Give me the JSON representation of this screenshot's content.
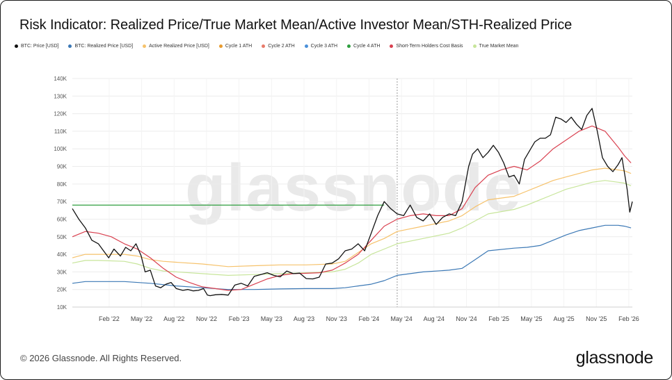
{
  "title": "Risk Indicator: Realized Price/True Market Mean/Active Investor Mean/STH-Realized Price",
  "legend": [
    {
      "label": "BTC: Price [USD]",
      "color": "#111111"
    },
    {
      "label": "BTC: Realized Price [USD]",
      "color": "#3b78b5"
    },
    {
      "label": "Active Realized Price [USD]",
      "color": "#f6c26b"
    },
    {
      "label": "Cycle 1 ATH",
      "color": "#e89b2e"
    },
    {
      "label": "Cycle 2 ATH",
      "color": "#e87a6a"
    },
    {
      "label": "Cycle 3 ATH",
      "color": "#4a90d9"
    },
    {
      "label": "Cycle 4 ATH",
      "color": "#2e9e3e"
    },
    {
      "label": "Short-Term Holders Cost Basis",
      "color": "#d9404f"
    },
    {
      "label": "True Market Mean",
      "color": "#c7e59a"
    }
  ],
  "watermark": "glassnode",
  "footer": "© 2026 Glassnode. All Rights Reserved.",
  "brand": "glassnode",
  "chart_data": {
    "type": "line",
    "title": "Risk Indicator: Realized Price/True Market Mean/Active Investor Mean/STH-Realized Price",
    "xlabel": "",
    "ylabel": "",
    "ylim": [
      10000,
      140000
    ],
    "xlim": [
      2021.8,
      2026.11
    ],
    "y_ticks": [
      {
        "value": 10000,
        "label": "10K"
      },
      {
        "value": 20000,
        "label": "20K"
      },
      {
        "value": 30000,
        "label": "30K"
      },
      {
        "value": 40000,
        "label": "40K"
      },
      {
        "value": 50000,
        "label": "50K"
      },
      {
        "value": 60000,
        "label": "60K"
      },
      {
        "value": 70000,
        "label": "70K"
      },
      {
        "value": 80000,
        "label": "80K"
      },
      {
        "value": 90000,
        "label": "90K"
      },
      {
        "value": 100000,
        "label": "100K"
      },
      {
        "value": 110000,
        "label": "110K"
      },
      {
        "value": 120000,
        "label": "120K"
      },
      {
        "value": 130000,
        "label": "130K"
      },
      {
        "value": 140000,
        "label": "140K"
      }
    ],
    "x_ticks": [
      {
        "value": 2022.083,
        "label": "Feb '22"
      },
      {
        "value": 2022.333,
        "label": "May '22"
      },
      {
        "value": 2022.583,
        "label": "Aug '22"
      },
      {
        "value": 2022.833,
        "label": "Nov '22"
      },
      {
        "value": 2023.083,
        "label": "Feb '23"
      },
      {
        "value": 2023.333,
        "label": "May '23"
      },
      {
        "value": 2023.583,
        "label": "Aug '23"
      },
      {
        "value": 2023.833,
        "label": "Nov '23"
      },
      {
        "value": 2024.083,
        "label": "Feb '24"
      },
      {
        "value": 2024.333,
        "label": "May '24"
      },
      {
        "value": 2024.583,
        "label": "Aug '24"
      },
      {
        "value": 2024.833,
        "label": "Nov '24"
      },
      {
        "value": 2025.083,
        "label": "Feb '25"
      },
      {
        "value": 2025.333,
        "label": "May '25"
      },
      {
        "value": 2025.583,
        "label": "Aug '25"
      },
      {
        "value": 2025.833,
        "label": "Nov '25"
      },
      {
        "value": 2026.083,
        "label": "Feb '26"
      }
    ],
    "hover_x": 2024.3,
    "ath_lines": [
      {
        "name": "Cycle 4 ATH",
        "value": 68000,
        "x_start": 2021.8,
        "x_end": 2024.2
      }
    ],
    "series": [
      {
        "name": "BTC: Price [USD]",
        "color": "#111111",
        "width": 1.3,
        "x": [
          2021.8,
          2021.85,
          2021.9,
          2021.95,
          2022.0,
          2022.04,
          2022.08,
          2022.12,
          2022.17,
          2022.21,
          2022.25,
          2022.29,
          2022.33,
          2022.36,
          2022.4,
          2022.44,
          2022.48,
          2022.52,
          2022.56,
          2022.6,
          2022.65,
          2022.69,
          2022.73,
          2022.77,
          2022.81,
          2022.84,
          2022.86,
          2022.9,
          2022.95,
          2023.0,
          2023.05,
          2023.1,
          2023.15,
          2023.2,
          2023.25,
          2023.3,
          2023.35,
          2023.4,
          2023.45,
          2023.5,
          2023.55,
          2023.6,
          2023.65,
          2023.7,
          2023.75,
          2023.8,
          2023.85,
          2023.9,
          2023.95,
          2024.0,
          2024.05,
          2024.1,
          2024.15,
          2024.2,
          2024.25,
          2024.3,
          2024.35,
          2024.4,
          2024.45,
          2024.5,
          2024.55,
          2024.6,
          2024.65,
          2024.7,
          2024.75,
          2024.8,
          2024.85,
          2024.88,
          2024.92,
          2024.96,
          2025.0,
          2025.04,
          2025.08,
          2025.12,
          2025.16,
          2025.2,
          2025.24,
          2025.28,
          2025.32,
          2025.36,
          2025.4,
          2025.44,
          2025.48,
          2025.52,
          2025.56,
          2025.6,
          2025.64,
          2025.68,
          2025.72,
          2025.76,
          2025.8,
          2025.84,
          2025.88,
          2025.92,
          2025.96,
          2026.0,
          2026.03,
          2026.05,
          2026.07,
          2026.09,
          2026.11
        ],
        "values": [
          66000,
          60000,
          55000,
          48000,
          46000,
          42000,
          38000,
          43000,
          39000,
          44000,
          42000,
          46000,
          39000,
          30000,
          31000,
          22000,
          21000,
          23000,
          24000,
          20500,
          19500,
          20000,
          19200,
          19500,
          20500,
          16800,
          16500,
          17000,
          17200,
          16800,
          22500,
          23500,
          22000,
          27500,
          28500,
          29500,
          28000,
          27200,
          30500,
          29000,
          29300,
          26200,
          26000,
          27000,
          34500,
          35000,
          37500,
          42000,
          43000,
          46000,
          42000,
          52000,
          62000,
          70000,
          66000,
          63000,
          62000,
          68000,
          61000,
          59000,
          63000,
          57000,
          61000,
          63000,
          62000,
          70000,
          90000,
          97000,
          100000,
          95000,
          98000,
          102000,
          98000,
          92000,
          84000,
          85000,
          80000,
          94000,
          99000,
          104000,
          106000,
          106000,
          108000,
          118000,
          117000,
          115000,
          118000,
          114000,
          111000,
          119000,
          123000,
          110000,
          95000,
          90000,
          87000,
          91000,
          95000,
          86000,
          77000,
          64000,
          70000
        ]
      },
      {
        "name": "Short-Term Holders Cost Basis",
        "color": "#d9404f",
        "width": 1.2,
        "x": [
          2021.8,
          2021.9,
          2022.0,
          2022.1,
          2022.2,
          2022.3,
          2022.4,
          2022.5,
          2022.6,
          2022.7,
          2022.8,
          2022.9,
          2023.0,
          2023.1,
          2023.2,
          2023.3,
          2023.4,
          2023.5,
          2023.6,
          2023.7,
          2023.8,
          2023.9,
          2024.0,
          2024.1,
          2024.2,
          2024.3,
          2024.4,
          2024.5,
          2024.6,
          2024.7,
          2024.8,
          2024.9,
          2025.0,
          2025.1,
          2025.2,
          2025.3,
          2025.4,
          2025.5,
          2025.6,
          2025.7,
          2025.8,
          2025.9,
          2026.0,
          2026.05,
          2026.1
        ],
        "values": [
          50000,
          53000,
          52000,
          50000,
          46000,
          43000,
          38000,
          32000,
          27000,
          24000,
          21500,
          20500,
          19500,
          20000,
          23000,
          26000,
          28000,
          29000,
          29200,
          29500,
          31000,
          35000,
          40000,
          48000,
          56000,
          60000,
          62000,
          63000,
          62000,
          62000,
          66000,
          78000,
          85000,
          88000,
          90000,
          88000,
          93000,
          100000,
          105000,
          110000,
          113000,
          110000,
          101000,
          96000,
          92000
        ]
      },
      {
        "name": "Active Realized Price [USD]",
        "color": "#f6c26b",
        "width": 1.2,
        "x": [
          2021.8,
          2021.9,
          2022.0,
          2022.2,
          2022.3,
          2022.4,
          2022.5,
          2022.6,
          2022.8,
          2023.0,
          2023.2,
          2023.4,
          2023.6,
          2023.8,
          2023.9,
          2024.0,
          2024.1,
          2024.2,
          2024.3,
          2024.5,
          2024.7,
          2024.8,
          2024.9,
          2025.0,
          2025.2,
          2025.3,
          2025.4,
          2025.5,
          2025.6,
          2025.7,
          2025.8,
          2025.9,
          2026.0,
          2026.05,
          2026.1
        ],
        "values": [
          38000,
          40000,
          40000,
          40000,
          39000,
          37000,
          36000,
          35500,
          34500,
          33000,
          33500,
          34000,
          34000,
          34500,
          36000,
          41000,
          46000,
          49000,
          53000,
          56000,
          59000,
          62000,
          67000,
          71000,
          73000,
          76000,
          79000,
          82000,
          84000,
          86000,
          88000,
          89000,
          88000,
          87500,
          86000
        ]
      },
      {
        "name": "True Market Mean",
        "color": "#c7e59a",
        "width": 1.2,
        "x": [
          2021.8,
          2021.9,
          2022.0,
          2022.2,
          2022.3,
          2022.4,
          2022.5,
          2022.6,
          2022.8,
          2023.0,
          2023.2,
          2023.4,
          2023.6,
          2023.8,
          2023.9,
          2024.0,
          2024.1,
          2024.2,
          2024.3,
          2024.5,
          2024.7,
          2024.8,
          2024.9,
          2025.0,
          2025.2,
          2025.3,
          2025.4,
          2025.5,
          2025.6,
          2025.7,
          2025.8,
          2025.9,
          2026.0,
          2026.05,
          2026.1
        ],
        "values": [
          35000,
          36500,
          36500,
          36000,
          34500,
          32000,
          30500,
          30000,
          29000,
          28000,
          28500,
          29000,
          29500,
          30000,
          31500,
          35000,
          40000,
          43000,
          46000,
          49000,
          52000,
          55000,
          59000,
          63000,
          65500,
          68000,
          71000,
          74000,
          77000,
          79000,
          81000,
          82000,
          81000,
          80500,
          79000
        ]
      },
      {
        "name": "BTC: Realized Price [USD]",
        "color": "#3b78b5",
        "width": 1.2,
        "x": [
          2021.8,
          2021.9,
          2022.0,
          2022.2,
          2022.4,
          2022.6,
          2022.8,
          2023.0,
          2023.2,
          2023.4,
          2023.6,
          2023.8,
          2023.9,
          2024.0,
          2024.1,
          2024.2,
          2024.3,
          2024.5,
          2024.7,
          2024.8,
          2024.9,
          2025.0,
          2025.2,
          2025.3,
          2025.4,
          2025.5,
          2025.6,
          2025.7,
          2025.8,
          2025.9,
          2026.0,
          2026.05,
          2026.1
        ],
        "values": [
          23500,
          24500,
          24500,
          24500,
          23500,
          22000,
          21000,
          20000,
          20000,
          20300,
          20500,
          20500,
          21000,
          22000,
          23000,
          25000,
          28000,
          30000,
          31000,
          32000,
          37000,
          42000,
          43500,
          44000,
          45000,
          48000,
          51000,
          53500,
          55000,
          56500,
          56500,
          56000,
          55000
        ]
      }
    ]
  }
}
